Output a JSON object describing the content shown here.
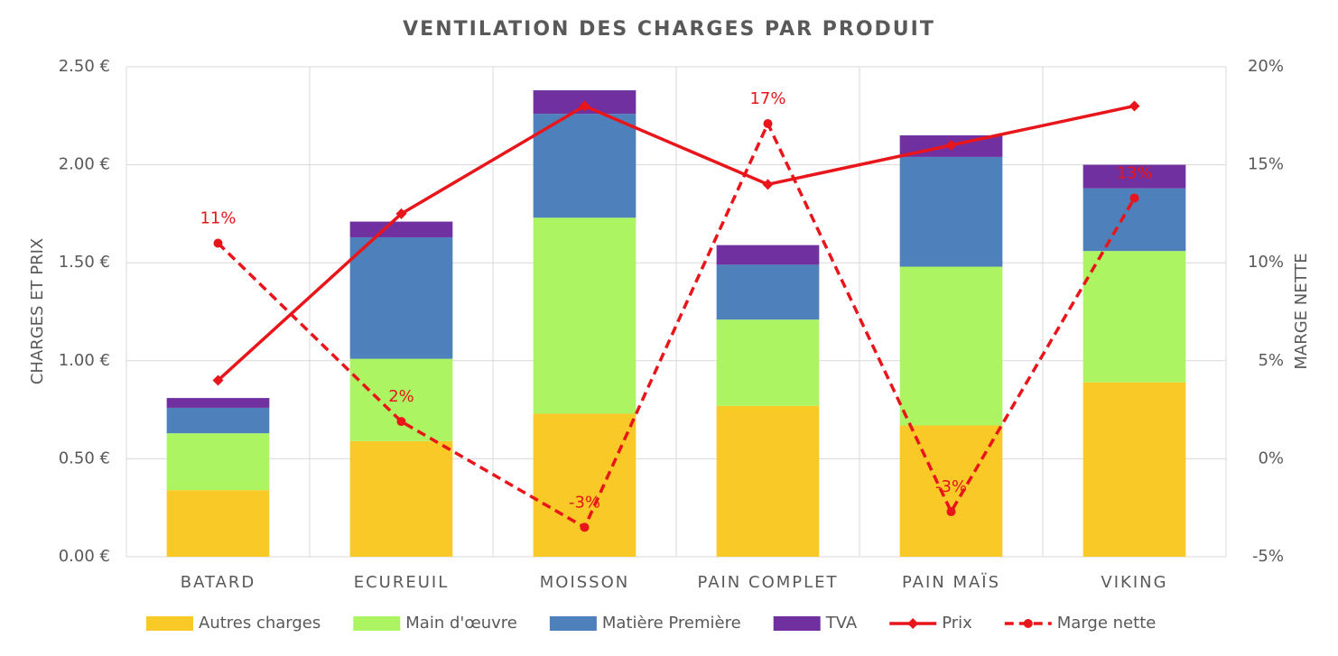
{
  "chart_data": {
    "type": "bar-line",
    "title": "VENTILATION DES CHARGES PAR PRODUIT",
    "y_label": "CHARGES ET PRIX",
    "y2_label": "MARGE NETTE",
    "categories": [
      "BATARD",
      "ECUREUIL",
      "MOISSON",
      "PAIN COMPLET",
      "PAIN MAÏS",
      "VIKING"
    ],
    "series": [
      {
        "name": "Autres charges",
        "type": "bar",
        "color": "#f9c928",
        "values": [
          0.34,
          0.59,
          0.73,
          0.77,
          0.67,
          0.89
        ]
      },
      {
        "name": "Main d'œuvre",
        "type": "bar",
        "color": "#adf462",
        "values": [
          0.29,
          0.42,
          1.0,
          0.44,
          0.81,
          0.67
        ]
      },
      {
        "name": "Matière Première",
        "type": "bar",
        "color": "#4e80bb",
        "values": [
          0.13,
          0.62,
          0.53,
          0.28,
          0.56,
          0.32
        ]
      },
      {
        "name": "TVA",
        "type": "bar",
        "color": "#7030a0",
        "values": [
          0.05,
          0.08,
          0.12,
          0.1,
          0.11,
          0.12
        ]
      },
      {
        "name": "Prix",
        "type": "line",
        "color": "#e8151b",
        "values": [
          0.9,
          1.75,
          2.3,
          1.9,
          2.1,
          2.3
        ]
      },
      {
        "name": "Marge nette",
        "type": "line",
        "dashed": true,
        "axis": "y2",
        "color": "#e8151b",
        "values": [
          11,
          1.9,
          -3.5,
          17.1,
          -2.7,
          13.3
        ],
        "value_labels": [
          "11%",
          "2%",
          "-3%",
          "17%",
          "-3%",
          "13%"
        ]
      }
    ],
    "ylim": [
      0,
      2.5
    ],
    "yticks": [
      {
        "value": 0,
        "label": "0.00 €"
      },
      {
        "value": 0.5,
        "label": "0.50 €"
      },
      {
        "value": 1,
        "label": "1.00 €"
      },
      {
        "value": 1.5,
        "label": "1.50 €"
      },
      {
        "value": 2,
        "label": "2.00 €"
      },
      {
        "value": 2.5,
        "label": "2.50 €"
      }
    ],
    "y2lim": [
      -5,
      20
    ],
    "y2ticks": [
      {
        "value": -5,
        "label": "-5%"
      },
      {
        "value": 0,
        "label": "0%"
      },
      {
        "value": 5,
        "label": "5%"
      },
      {
        "value": 10,
        "label": "10%"
      },
      {
        "value": 15,
        "label": "15%"
      },
      {
        "value": 20,
        "label": "20%"
      }
    ],
    "grid": true,
    "legend": "bottom"
  }
}
